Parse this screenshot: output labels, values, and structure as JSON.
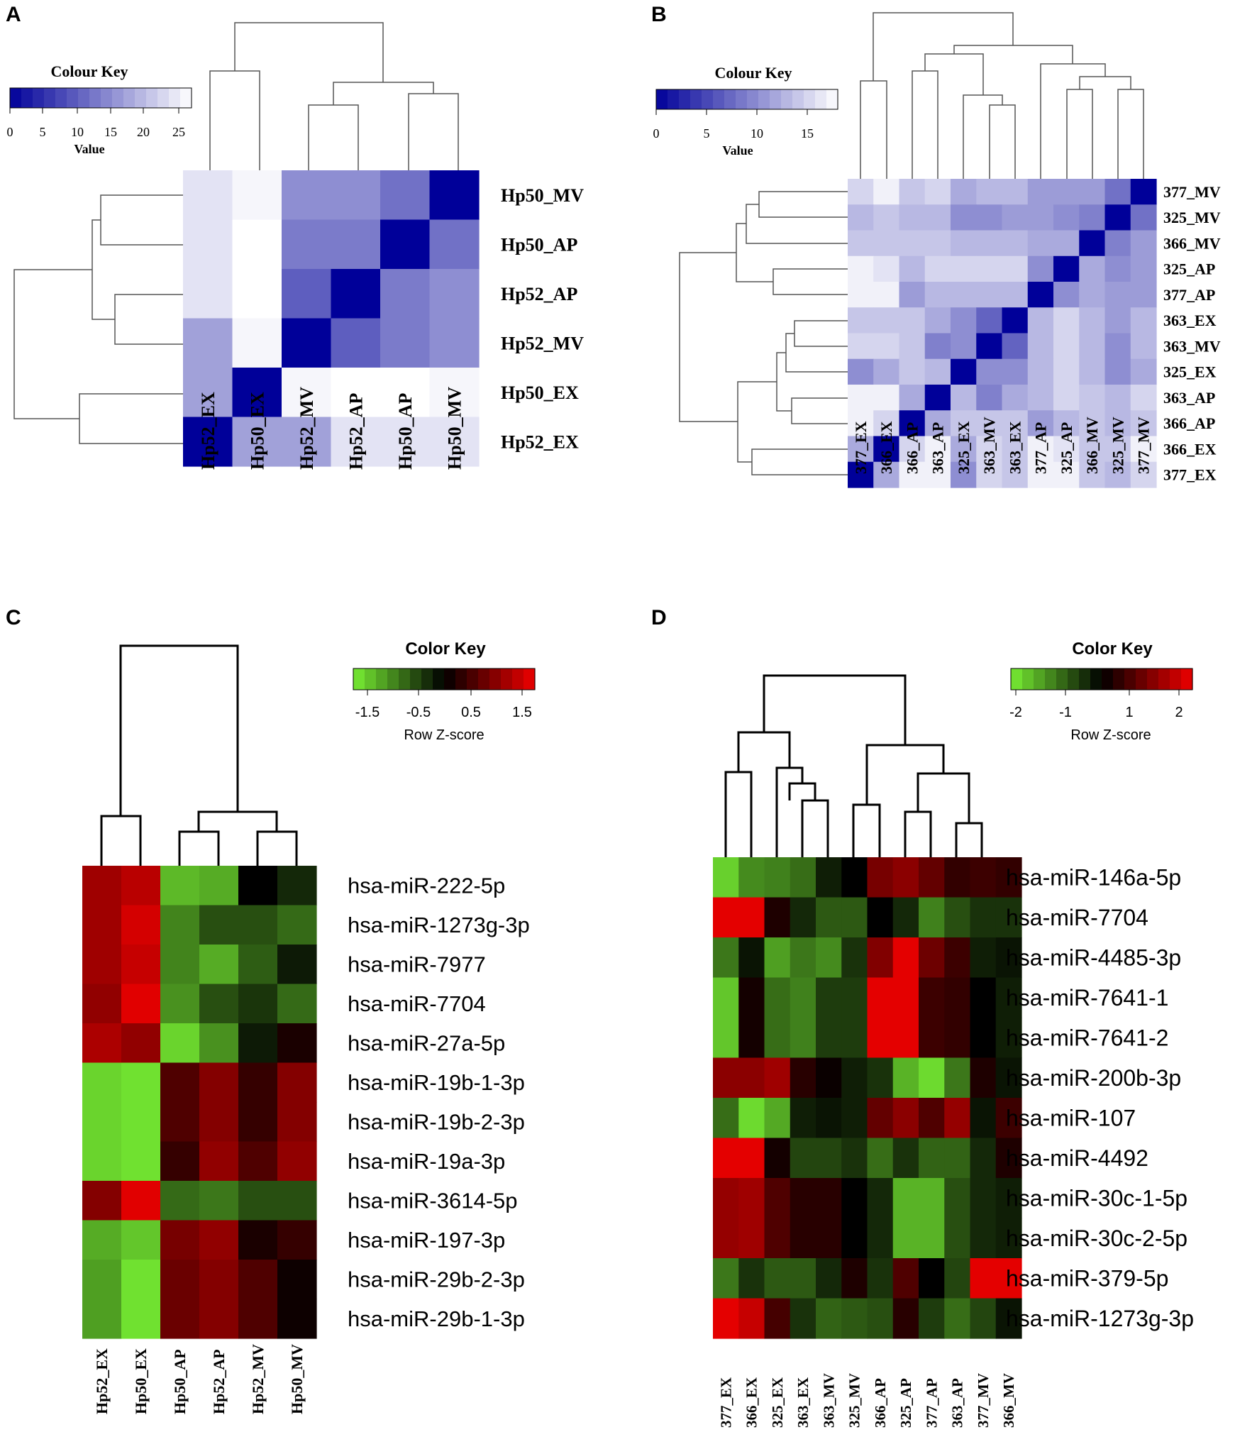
{
  "chart_data": [
    {
      "panel": "A",
      "type": "heatmap",
      "color_key": {
        "title": "Colour Key",
        "xlabel": "Value",
        "ticks": [
          "0",
          "5",
          "10",
          "15",
          "20",
          "25"
        ],
        "range": [
          0,
          27
        ],
        "low_color": "#000099",
        "high_color": "#ffffff"
      },
      "columns": [
        "Hp52_EX",
        "Hp50_EX",
        "Hp52_MV",
        "Hp52_AP",
        "Hp50_AP",
        "Hp50_MV"
      ],
      "rows": [
        "Hp50_MV",
        "Hp50_AP",
        "Hp52_AP",
        "Hp52_MV",
        "Hp50_EX",
        "Hp52_EX"
      ],
      "values": [
        [
          24,
          26,
          15,
          15,
          12,
          0
        ],
        [
          24,
          27,
          13,
          13,
          0,
          12
        ],
        [
          24,
          27,
          10,
          0,
          13,
          15
        ],
        [
          17,
          26,
          0,
          10,
          13,
          15
        ],
        [
          17,
          0,
          26,
          27,
          27,
          26
        ],
        [
          0,
          17,
          17,
          24,
          24,
          24
        ]
      ]
    },
    {
      "panel": "B",
      "type": "heatmap",
      "color_key": {
        "title": "Colour Key",
        "xlabel": "Value",
        "ticks": [
          "0",
          "5",
          "10",
          "15"
        ],
        "range": [
          0,
          18
        ],
        "low_color": "#000099",
        "high_color": "#ffffff"
      },
      "columns": [
        "377_EX",
        "366_EX",
        "366_AP",
        "363_AP",
        "325_EX",
        "363_MV",
        "363_EX",
        "377_AP",
        "325_AP",
        "366_MV",
        "325_MV",
        "377_MV"
      ],
      "rows": [
        "377_MV",
        "325_MV",
        "366_MV",
        "325_AP",
        "377_AP",
        "363_EX",
        "363_MV",
        "325_EX",
        "363_AP",
        "366_AP",
        "366_EX",
        "377_EX"
      ],
      "values": [
        [
          15,
          17,
          14,
          15,
          12,
          13,
          13,
          11,
          11,
          11,
          8,
          0
        ],
        [
          13,
          14,
          13,
          13,
          10,
          10,
          11,
          11,
          10,
          9,
          0,
          8
        ],
        [
          14,
          14,
          14,
          14,
          13,
          13,
          13,
          12,
          12,
          0,
          9,
          11
        ],
        [
          17,
          16,
          13,
          15,
          15,
          15,
          15,
          10,
          0,
          12,
          10,
          11
        ],
        [
          17,
          17,
          11,
          13,
          13,
          13,
          13,
          0,
          10,
          12,
          11,
          11
        ],
        [
          14,
          14,
          14,
          12,
          10,
          7,
          0,
          13,
          15,
          13,
          11,
          13
        ],
        [
          15,
          15,
          14,
          9,
          10,
          0,
          7,
          13,
          15,
          13,
          10,
          13
        ],
        [
          10,
          12,
          14,
          13,
          0,
          10,
          10,
          13,
          15,
          13,
          10,
          12
        ],
        [
          17,
          17,
          12,
          0,
          13,
          9,
          12,
          13,
          15,
          14,
          13,
          15
        ],
        [
          17,
          15,
          0,
          12,
          14,
          14,
          14,
          11,
          13,
          14,
          13,
          14
        ],
        [
          12,
          0,
          15,
          17,
          12,
          15,
          14,
          17,
          16,
          14,
          14,
          17
        ],
        [
          0,
          12,
          17,
          17,
          10,
          15,
          14,
          17,
          17,
          14,
          13,
          15
        ]
      ]
    },
    {
      "panel": "C",
      "type": "heatmap",
      "color_key": {
        "title": "Color Key",
        "xlabel": "Row Z-score",
        "ticks": [
          "-1.5",
          "-0.5",
          "0.5",
          "1.5"
        ],
        "range": [
          -1.8,
          1.8
        ],
        "low_color": "#77ee33",
        "mid_color": "#000000",
        "high_color": "#ee0000"
      },
      "columns": [
        "Hp52_EX",
        "Hp50_EX",
        "Hp50_AP",
        "Hp52_AP",
        "Hp52_MV",
        "Hp50_MV"
      ],
      "rows": [
        "hsa-miR-222-5p",
        "hsa-miR-1273g-3p",
        "hsa-miR-7977",
        "hsa-miR-7704",
        "hsa-miR-27a-5p",
        "hsa-miR-19b-1-3p",
        "hsa-miR-19b-2-3p",
        "hsa-miR-19a-3p",
        "hsa-miR-3614-5p",
        "hsa-miR-197-3p",
        "hsa-miR-29b-2-3p",
        "hsa-miR-29b-1-3p"
      ],
      "values": [
        [
          1.2,
          1.4,
          -1.4,
          -1.3,
          0.0,
          -0.3
        ],
        [
          1.2,
          1.6,
          -1.0,
          -0.6,
          -0.6,
          -0.8
        ],
        [
          1.2,
          1.5,
          -1.0,
          -1.3,
          -0.7,
          -0.2
        ],
        [
          1.1,
          1.7,
          -1.1,
          -0.6,
          -0.4,
          -0.8
        ],
        [
          1.3,
          1.1,
          -1.6,
          -1.1,
          -0.2,
          0.2
        ],
        [
          -1.6,
          -1.7,
          0.6,
          1.0,
          0.4,
          1.0
        ],
        [
          -1.6,
          -1.7,
          0.6,
          1.0,
          0.4,
          1.0
        ],
        [
          -1.6,
          -1.7,
          0.4,
          1.1,
          0.6,
          1.1
        ],
        [
          1.0,
          1.7,
          -0.8,
          -0.9,
          -0.6,
          -0.6
        ],
        [
          -1.3,
          -1.5,
          0.9,
          1.1,
          0.2,
          0.4
        ],
        [
          -1.2,
          -1.7,
          0.8,
          1.0,
          0.6,
          0.1
        ],
        [
          -1.2,
          -1.7,
          0.8,
          1.0,
          0.6,
          0.1
        ]
      ]
    },
    {
      "panel": "D",
      "type": "heatmap",
      "color_key": {
        "title": "Color Key",
        "xlabel": "Row Z-score",
        "ticks": [
          "-2",
          "-1",
          "1",
          "2"
        ],
        "range": [
          -2.4,
          2.4
        ],
        "low_color": "#77ee33",
        "mid_color": "#000000",
        "high_color": "#ee0000"
      },
      "columns": [
        "377_EX",
        "366_EX",
        "325_EX",
        "363_EX",
        "363_MV",
        "325_MV",
        "366_AP",
        "325_AP",
        "377_AP",
        "363_AP",
        "377_MV",
        "366_MV"
      ],
      "rows": [
        "hsa-miR-146a-5p",
        "hsa-miR-7704",
        "hsa-miR-4485-3p",
        "hsa-miR-7641-1",
        "hsa-miR-7641-2",
        "hsa-miR-200b-3p",
        "hsa-miR-107",
        "hsa-miR-4492",
        "hsa-miR-30c-1-5p",
        "hsa-miR-30c-2-5p",
        "hsa-miR-379-5p",
        "hsa-miR-1273g-3p"
      ],
      "values": [
        [
          -2.1,
          -1.4,
          -1.3,
          -1.1,
          -0.3,
          0.0,
          1.2,
          1.4,
          1.0,
          0.5,
          0.6,
          0.5
        ],
        [
          2.3,
          2.3,
          0.3,
          -0.4,
          -0.9,
          -0.9,
          0.0,
          -0.4,
          -1.3,
          -0.8,
          -0.5,
          -0.5
        ],
        [
          -1.2,
          -0.2,
          -1.6,
          -1.2,
          -1.4,
          -0.5,
          1.3,
          2.3,
          1.1,
          0.6,
          -0.3,
          -0.2
        ],
        [
          -2.0,
          0.2,
          -1.1,
          -1.3,
          -0.6,
          -0.6,
          2.3,
          2.3,
          0.6,
          0.5,
          0.0,
          -0.3
        ],
        [
          -2.0,
          0.2,
          -1.1,
          -1.3,
          -0.6,
          -0.6,
          2.3,
          2.3,
          0.6,
          0.5,
          0.0,
          -0.3
        ],
        [
          1.4,
          1.4,
          1.6,
          0.4,
          0.1,
          -0.3,
          -0.5,
          -1.8,
          -2.2,
          -1.2,
          0.3,
          -0.2
        ],
        [
          -1.1,
          -2.2,
          -1.7,
          -0.3,
          -0.2,
          -0.3,
          1.0,
          1.4,
          0.8,
          1.5,
          -0.2,
          0.6
        ],
        [
          2.3,
          2.3,
          0.2,
          -0.7,
          -0.7,
          -0.5,
          -1.1,
          -0.5,
          -1.0,
          -1.0,
          -0.4,
          0.3
        ],
        [
          1.5,
          1.6,
          0.8,
          0.4,
          0.4,
          0.0,
          -0.4,
          -1.8,
          -1.8,
          -0.8,
          -0.4,
          -0.3
        ],
        [
          1.5,
          1.6,
          0.8,
          0.4,
          0.4,
          0.0,
          -0.4,
          -1.8,
          -1.8,
          -0.8,
          -0.4,
          -0.3
        ],
        [
          -1.2,
          -0.5,
          -0.9,
          -0.9,
          -0.4,
          0.3,
          -0.5,
          0.8,
          0.0,
          -0.7,
          2.3,
          2.3
        ],
        [
          2.3,
          2.0,
          0.7,
          -0.5,
          -1.0,
          -0.9,
          -0.8,
          0.4,
          -0.6,
          -1.1,
          -0.7,
          -0.2
        ]
      ]
    }
  ]
}
